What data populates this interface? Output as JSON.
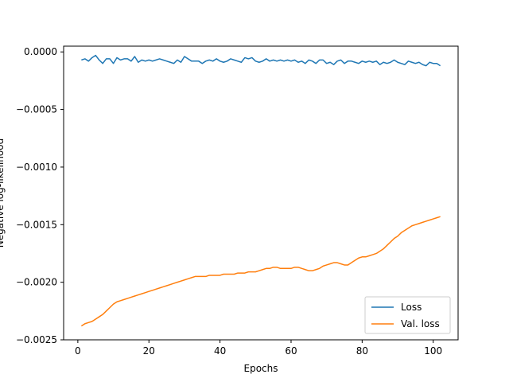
{
  "chart_data": {
    "type": "line",
    "title": "",
    "xlabel": "Epochs",
    "ylabel": "Negative log-likelihood",
    "xlim": [
      -4,
      107
    ],
    "ylim": [
      -0.0025,
      5e-05
    ],
    "x_ticks": [
      0,
      20,
      40,
      60,
      80,
      100
    ],
    "x_tick_labels": [
      "0",
      "20",
      "40",
      "60",
      "80",
      "100"
    ],
    "y_ticks": [
      0,
      -0.0005,
      -0.001,
      -0.0015,
      -0.002,
      -0.0025
    ],
    "y_tick_labels": [
      "0.0000",
      "−0.0005",
      "−0.0010",
      "−0.0015",
      "−0.0020",
      "−0.0025"
    ],
    "grid": false,
    "legend_position": "lower-right",
    "series": [
      {
        "name": "Loss",
        "color": "#1f77b4",
        "x": [
          1,
          2,
          3,
          4,
          5,
          6,
          7,
          8,
          9,
          10,
          11,
          12,
          13,
          14,
          15,
          16,
          17,
          18,
          19,
          20,
          21,
          22,
          23,
          24,
          25,
          26,
          27,
          28,
          29,
          30,
          31,
          32,
          33,
          34,
          35,
          36,
          37,
          38,
          39,
          40,
          41,
          42,
          43,
          44,
          45,
          46,
          47,
          48,
          49,
          50,
          51,
          52,
          53,
          54,
          55,
          56,
          57,
          58,
          59,
          60,
          61,
          62,
          63,
          64,
          65,
          66,
          67,
          68,
          69,
          70,
          71,
          72,
          73,
          74,
          75,
          76,
          77,
          78,
          79,
          80,
          81,
          82,
          83,
          84,
          85,
          86,
          87,
          88,
          89,
          90,
          91,
          92,
          93,
          94,
          95,
          96,
          97,
          98,
          99,
          100,
          101,
          102
        ],
        "y": [
          -7e-05,
          -6e-05,
          -8e-05,
          -5e-05,
          -3e-05,
          -7e-05,
          -0.0001,
          -6e-05,
          -6e-05,
          -0.0001,
          -5e-05,
          -7e-05,
          -6e-05,
          -6e-05,
          -8e-05,
          -4e-05,
          -9e-05,
          -7e-05,
          -8e-05,
          -7e-05,
          -8e-05,
          -7e-05,
          -6e-05,
          -7e-05,
          -8e-05,
          -9e-05,
          -0.0001,
          -7e-05,
          -9e-05,
          -4e-05,
          -6e-05,
          -8e-05,
          -8e-05,
          -8e-05,
          -0.0001,
          -8e-05,
          -7e-05,
          -8e-05,
          -6e-05,
          -8e-05,
          -9e-05,
          -8e-05,
          -6e-05,
          -7e-05,
          -8e-05,
          -9e-05,
          -5e-05,
          -6e-05,
          -5e-05,
          -8e-05,
          -9e-05,
          -8e-05,
          -6e-05,
          -8e-05,
          -7e-05,
          -8e-05,
          -7e-05,
          -8e-05,
          -7e-05,
          -8e-05,
          -7e-05,
          -9e-05,
          -8e-05,
          -0.0001,
          -7e-05,
          -8e-05,
          -0.0001,
          -7e-05,
          -7e-05,
          -0.0001,
          -9e-05,
          -0.00011,
          -8e-05,
          -7e-05,
          -0.0001,
          -8e-05,
          -8e-05,
          -9e-05,
          -0.0001,
          -8e-05,
          -9e-05,
          -8e-05,
          -9e-05,
          -8e-05,
          -0.00011,
          -9e-05,
          -0.0001,
          -9e-05,
          -7e-05,
          -9e-05,
          -0.0001,
          -0.00011,
          -8e-05,
          -9e-05,
          -0.0001,
          -9e-05,
          -0.00011,
          -0.00012,
          -9e-05,
          -0.0001,
          -0.0001,
          -0.00012
        ]
      },
      {
        "name": "Val. loss",
        "color": "#ff7f0e",
        "x": [
          1,
          2,
          3,
          4,
          5,
          6,
          7,
          8,
          9,
          10,
          11,
          12,
          13,
          14,
          15,
          16,
          17,
          18,
          19,
          20,
          21,
          22,
          23,
          24,
          25,
          26,
          27,
          28,
          29,
          30,
          31,
          32,
          33,
          34,
          35,
          36,
          37,
          38,
          39,
          40,
          41,
          42,
          43,
          44,
          45,
          46,
          47,
          48,
          49,
          50,
          51,
          52,
          53,
          54,
          55,
          56,
          57,
          58,
          59,
          60,
          61,
          62,
          63,
          64,
          65,
          66,
          67,
          68,
          69,
          70,
          71,
          72,
          73,
          74,
          75,
          76,
          77,
          78,
          79,
          80,
          81,
          82,
          83,
          84,
          85,
          86,
          87,
          88,
          89,
          90,
          91,
          92,
          93,
          94,
          95,
          96,
          97,
          98,
          99,
          100,
          101,
          102
        ],
        "y": [
          -0.00238,
          -0.00236,
          -0.00235,
          -0.00234,
          -0.00232,
          -0.0023,
          -0.00228,
          -0.00225,
          -0.00222,
          -0.00219,
          -0.00217,
          -0.00216,
          -0.00215,
          -0.00214,
          -0.00213,
          -0.00212,
          -0.00211,
          -0.0021,
          -0.00209,
          -0.00208,
          -0.00207,
          -0.00206,
          -0.00205,
          -0.00204,
          -0.00203,
          -0.00202,
          -0.00201,
          -0.002,
          -0.00199,
          -0.00198,
          -0.00197,
          -0.00196,
          -0.00195,
          -0.00195,
          -0.00195,
          -0.00195,
          -0.00194,
          -0.00194,
          -0.00194,
          -0.00194,
          -0.00193,
          -0.00193,
          -0.00193,
          -0.00193,
          -0.00192,
          -0.00192,
          -0.00192,
          -0.00191,
          -0.00191,
          -0.00191,
          -0.0019,
          -0.00189,
          -0.00188,
          -0.00188,
          -0.00187,
          -0.00187,
          -0.00188,
          -0.00188,
          -0.00188,
          -0.00188,
          -0.00187,
          -0.00187,
          -0.00188,
          -0.00189,
          -0.0019,
          -0.0019,
          -0.00189,
          -0.00188,
          -0.00186,
          -0.00185,
          -0.00184,
          -0.00183,
          -0.00183,
          -0.00184,
          -0.00185,
          -0.00185,
          -0.00183,
          -0.00181,
          -0.00179,
          -0.00178,
          -0.00178,
          -0.00177,
          -0.00176,
          -0.00175,
          -0.00173,
          -0.00171,
          -0.00168,
          -0.00165,
          -0.00162,
          -0.0016,
          -0.00157,
          -0.00155,
          -0.00153,
          -0.00151,
          -0.0015,
          -0.00149,
          -0.00148,
          -0.00147,
          -0.00146,
          -0.00145,
          -0.00144,
          -0.00143
        ]
      }
    ]
  }
}
